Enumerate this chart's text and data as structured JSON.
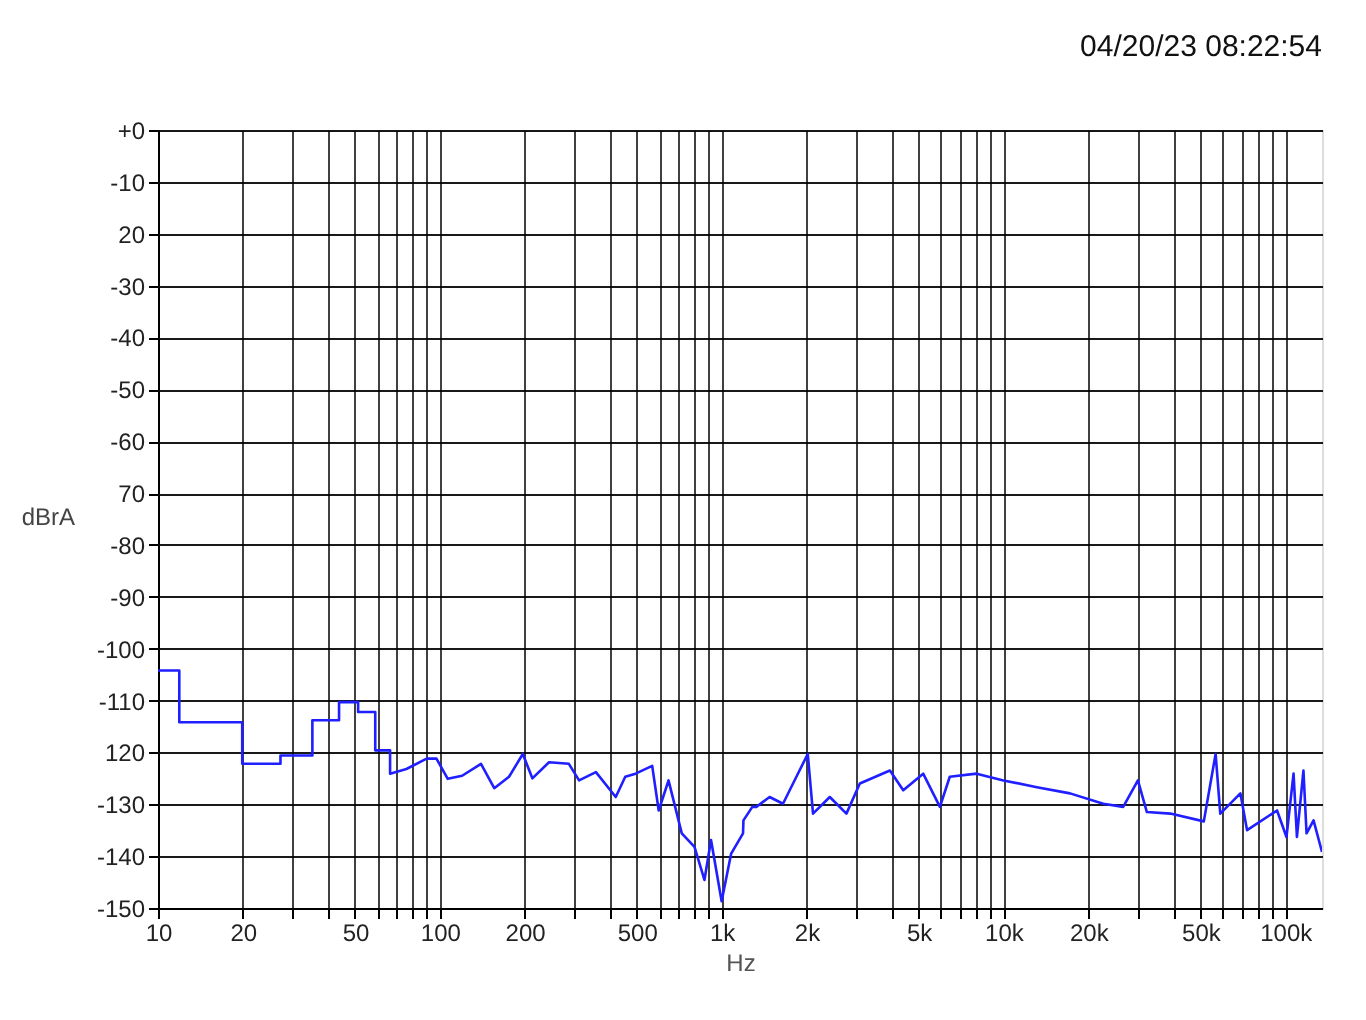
{
  "chart_data": {
    "type": "line",
    "xlabel": "Hz",
    "ylabel": "dBrA",
    "annotations": [
      "04/20/23 08:22:54"
    ],
    "log": "x",
    "grid": true,
    "line_style": "solid",
    "marker": "none",
    "xlim": [
      10,
      135000
    ],
    "ylim": [
      -150,
      0
    ],
    "xticks": [
      10,
      20,
      {
        "value": 30,
        "label": null
      },
      {
        "value": 40,
        "label": null
      },
      50,
      {
        "value": 60,
        "label": null
      },
      {
        "value": 70,
        "label": null
      },
      {
        "value": 80,
        "label": null
      },
      {
        "value": 90,
        "label": null
      },
      100,
      200,
      {
        "value": 300,
        "label": null
      },
      {
        "value": 400,
        "label": null
      },
      500,
      {
        "value": 600,
        "label": null
      },
      {
        "value": 700,
        "label": null
      },
      {
        "value": 800,
        "label": null
      },
      {
        "value": 900,
        "label": null
      },
      {
        "value": 1000,
        "label": "1k"
      },
      {
        "value": 2000,
        "label": "2k"
      },
      {
        "value": 3000,
        "label": null
      },
      {
        "value": 4000,
        "label": null
      },
      {
        "value": 5000,
        "label": "5k"
      },
      {
        "value": 6000,
        "label": null
      },
      {
        "value": 7000,
        "label": null
      },
      {
        "value": 8000,
        "label": null
      },
      {
        "value": 9000,
        "label": null
      },
      {
        "value": 10000,
        "label": "10k"
      },
      {
        "value": 20000,
        "label": "20k"
      },
      {
        "value": 30000,
        "label": null
      },
      {
        "value": 40000,
        "label": null
      },
      {
        "value": 50000,
        "label": "50k"
      },
      {
        "value": 60000,
        "label": null
      },
      {
        "value": 70000,
        "label": null
      },
      {
        "value": 80000,
        "label": null
      },
      {
        "value": 90000,
        "label": null
      },
      {
        "value": 100000,
        "label": "100k"
      }
    ],
    "yticks": [
      {
        "value": 0,
        "label": "+0"
      },
      -10,
      {
        "value": -20,
        "label": "20"
      },
      -30,
      -40,
      -50,
      -60,
      {
        "value": -70,
        "label": "70"
      },
      -80,
      -90,
      -100,
      -110,
      {
        "value": -120,
        "label": "120"
      },
      -130,
      -140,
      -150
    ],
    "series": [
      {
        "color": "#1f1fff",
        "x": [
          10,
          11.9,
          11.9,
          19.9,
          19.9,
          27.2,
          27.2,
          35.3,
          35.3,
          43.9,
          43.9,
          51.3,
          51.3,
          59.0,
          59.0,
          66.6,
          66.6,
          76.1,
          89.8,
          97.3,
          106.7,
          120,
          140,
          156,
          176,
          197,
          213,
          244,
          287,
          312,
          358,
          421,
          455,
          495,
          567,
          598,
          648,
          722,
          801,
          869,
          917,
          1000,
          1081,
          1191,
          1195,
          1285,
          1328,
          1480,
          1651,
          1842,
          2021,
          2110,
          2420,
          2772,
          3093,
          3955,
          4410,
          5190,
          5950,
          6450,
          8030,
          10000,
          13140,
          17230,
          22600,
          26600,
          30000,
          32280,
          39100,
          51400,
          56600,
          58800,
          69300,
          73200,
          93500,
          101000,
          107000,
          110000,
          116000,
          119000,
          126000,
          135000
        ],
        "values": [
          -104.2,
          -104.2,
          -114.2,
          -114.2,
          -122.2,
          -122.2,
          -120.6,
          -120.6,
          -113.8,
          -113.8,
          -110.3,
          -110.3,
          -112.2,
          -112.2,
          -119.6,
          -119.6,
          -124.1,
          -123.2,
          -121.2,
          -121.2,
          -125.1,
          -124.5,
          -122.2,
          -126.9,
          -124.7,
          -120.3,
          -125.0,
          -121.9,
          -122.2,
          -125.4,
          -123.8,
          -128.6,
          -124.7,
          -124.1,
          -122.6,
          -131.2,
          -125.4,
          -135.6,
          -138.2,
          -144.6,
          -136.9,
          -148.7,
          -139.5,
          -135.6,
          -133.1,
          -130.5,
          -130.5,
          -128.6,
          -129.9,
          -124.7,
          -120.3,
          -131.8,
          -128.6,
          -131.8,
          -126.0,
          -123.5,
          -127.3,
          -124.1,
          -130.5,
          -124.7,
          -124.1,
          -125.4,
          -126.7,
          -127.9,
          -129.9,
          -130.5,
          -125.4,
          -131.5,
          -131.8,
          -133.3,
          -120.3,
          -131.8,
          -127.9,
          -135.0,
          -131.2,
          -136.3,
          -124.1,
          -136.3,
          -123.5,
          -135.6,
          -133.1,
          -139.2
        ]
      }
    ]
  }
}
